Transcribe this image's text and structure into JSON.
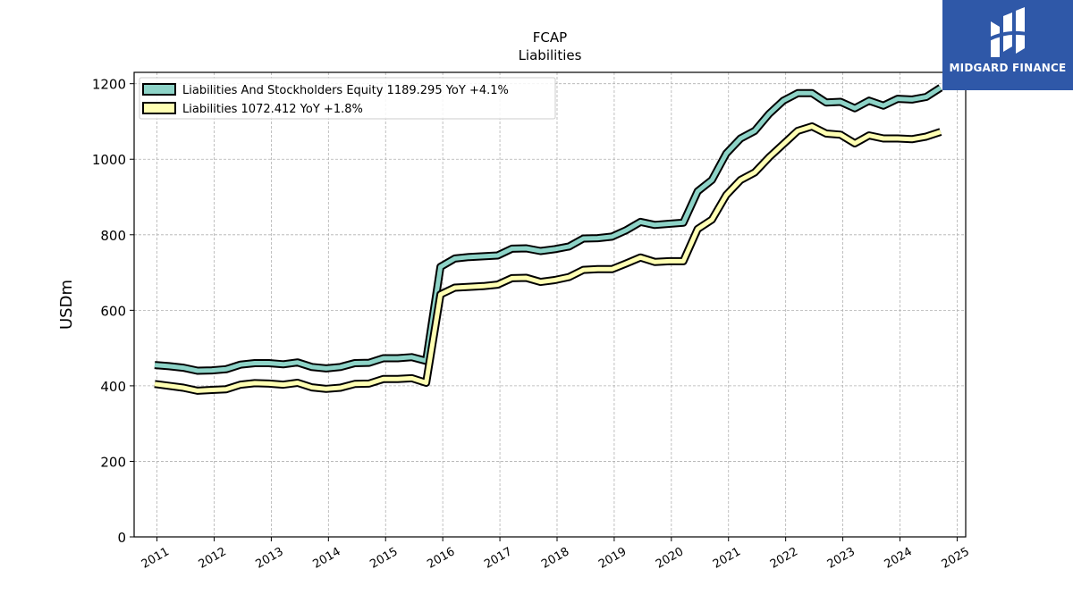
{
  "logo": {
    "name": "MIDGARD FINANCE",
    "bg_color": "#2f58a8"
  },
  "chart_data": {
    "type": "line",
    "title": "FCAP",
    "subtitle": "Liabilities",
    "ylabel": "USDm",
    "xlabel": "",
    "ylim": [
      0,
      1230
    ],
    "xlim": [
      2010.6,
      2025.15
    ],
    "y_ticks": [
      0,
      200,
      400,
      600,
      800,
      1000,
      1200
    ],
    "x_ticks": [
      "2011",
      "2012",
      "2013",
      "2014",
      "2015",
      "2016",
      "2017",
      "2018",
      "2019",
      "2020",
      "2021",
      "2022",
      "2023",
      "2024",
      "2025"
    ],
    "grid": true,
    "legend_position": "top-left",
    "series": [
      {
        "name": "Liabilities And Stockholders Equity",
        "legend_value": "1189.295 YoY +4.1%",
        "color": "#8dd3c7",
        "x": [
          2010.96,
          2011.21,
          2011.46,
          2011.71,
          2011.96,
          2012.21,
          2012.46,
          2012.71,
          2012.96,
          2013.21,
          2013.46,
          2013.71,
          2013.96,
          2014.21,
          2014.46,
          2014.71,
          2014.96,
          2015.21,
          2015.46,
          2015.71,
          2015.96,
          2016.21,
          2016.46,
          2016.71,
          2016.96,
          2017.21,
          2017.46,
          2017.71,
          2017.96,
          2018.21,
          2018.46,
          2018.71,
          2018.96,
          2019.21,
          2019.46,
          2019.71,
          2019.96,
          2020.21,
          2020.46,
          2020.71,
          2020.96,
          2021.21,
          2021.46,
          2021.71,
          2021.96,
          2022.21,
          2022.46,
          2022.71,
          2022.96,
          2023.21,
          2023.46,
          2023.71,
          2023.96,
          2024.21,
          2024.46,
          2024.71
        ],
        "y": [
          455,
          452,
          448,
          440,
          441,
          444,
          456,
          460,
          460,
          457,
          462,
          450,
          446,
          450,
          460,
          461,
          473,
          473,
          476,
          466,
          715,
          737,
          741,
          743,
          745,
          763,
          764,
          757,
          762,
          769,
          790,
          791,
          795,
          812,
          834,
          826,
          829,
          832,
          915,
          945,
          1015,
          1055,
          1075,
          1120,
          1155,
          1175,
          1175,
          1150,
          1152,
          1135,
          1155,
          1142,
          1160,
          1158,
          1165,
          1189.295
        ]
      },
      {
        "name": "Liabilities",
        "legend_value": "1072.412 YoY +1.8%",
        "color": "#ffffb3",
        "x": [
          2010.96,
          2011.21,
          2011.46,
          2011.71,
          2011.96,
          2012.21,
          2012.46,
          2012.71,
          2012.96,
          2013.21,
          2013.46,
          2013.71,
          2013.96,
          2014.21,
          2014.46,
          2014.71,
          2014.96,
          2015.21,
          2015.46,
          2015.71,
          2015.96,
          2016.21,
          2016.46,
          2016.71,
          2016.96,
          2017.21,
          2017.46,
          2017.71,
          2017.96,
          2018.21,
          2018.46,
          2018.71,
          2018.96,
          2019.21,
          2019.46,
          2019.71,
          2019.96,
          2020.21,
          2020.46,
          2020.71,
          2020.96,
          2021.21,
          2021.46,
          2021.71,
          2021.96,
          2022.21,
          2022.46,
          2022.71,
          2022.96,
          2023.21,
          2023.46,
          2023.71,
          2023.96,
          2024.21,
          2024.46,
          2024.71
        ],
        "y": [
          405,
          400,
          395,
          387,
          389,
          391,
          403,
          407,
          406,
          403,
          408,
          396,
          392,
          395,
          405,
          406,
          418,
          418,
          420,
          408,
          642,
          660,
          662,
          664,
          668,
          685,
          686,
          675,
          680,
          688,
          707,
          709,
          709,
          724,
          740,
          728,
          730,
          730,
          815,
          840,
          905,
          945,
          965,
          1005,
          1040,
          1075,
          1087,
          1068,
          1065,
          1042,
          1063,
          1055,
          1055,
          1053,
          1060,
          1072.412
        ]
      }
    ]
  }
}
